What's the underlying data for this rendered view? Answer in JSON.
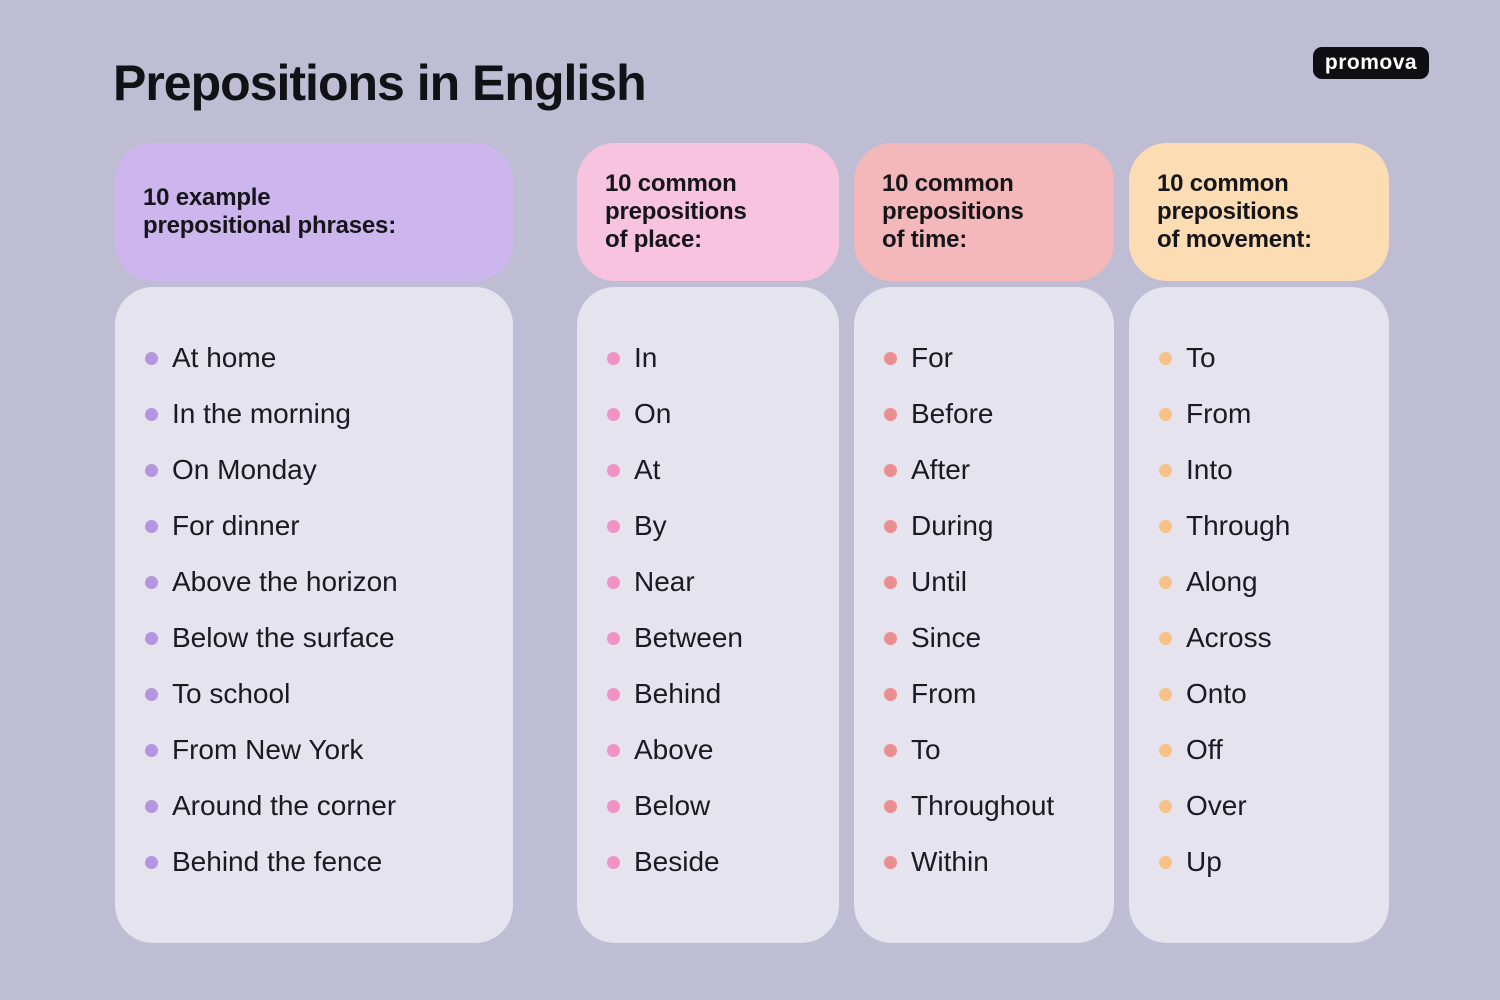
{
  "page": {
    "title": "Prepositions in English",
    "brand": "promova"
  },
  "colors": {
    "background": "#bfbdd3",
    "panel_body": "#e5e3ee",
    "text": "#15151a",
    "logo_bg": "#0f0f13",
    "logo_text": "#ffffff"
  },
  "columns": [
    {
      "name": "example-prepositional-phrases",
      "header_lines": [
        "10 example",
        "prepositional phrases:"
      ],
      "header_bg": "#cdb6ee",
      "bullet_color": "#b496e0",
      "items": [
        "At home",
        "In the morning",
        "On Monday",
        "For dinner",
        "Above the horizon",
        "Below the surface",
        "To school",
        "From New York",
        "Around the corner",
        "Behind the fence"
      ]
    },
    {
      "name": "prepositions-of-place",
      "header_lines": [
        "10 common",
        "prepositions",
        "of place:"
      ],
      "header_bg": "#f8c3de",
      "bullet_color": "#f192c6",
      "items": [
        "In",
        "On",
        "At",
        "By",
        "Near",
        "Between",
        "Behind",
        "Above",
        "Below",
        "Beside"
      ]
    },
    {
      "name": "prepositions-of-time",
      "header_lines": [
        "10 common",
        "prepositions",
        "of time:"
      ],
      "header_bg": "#f5b8ba",
      "bullet_color": "#e98f92",
      "items": [
        "For",
        "Before",
        "After",
        "During",
        "Until",
        "Since",
        "From",
        "To",
        "Throughout",
        "Within"
      ]
    },
    {
      "name": "prepositions-of-movement",
      "header_lines": [
        "10 common",
        "prepositions",
        "of movement:"
      ],
      "header_bg": "#fcdcb2",
      "bullet_color": "#f6c287",
      "items": [
        "To",
        "From",
        "Into",
        "Through",
        "Along",
        "Across",
        "Onto",
        "Off",
        "Over",
        "Up"
      ]
    }
  ]
}
